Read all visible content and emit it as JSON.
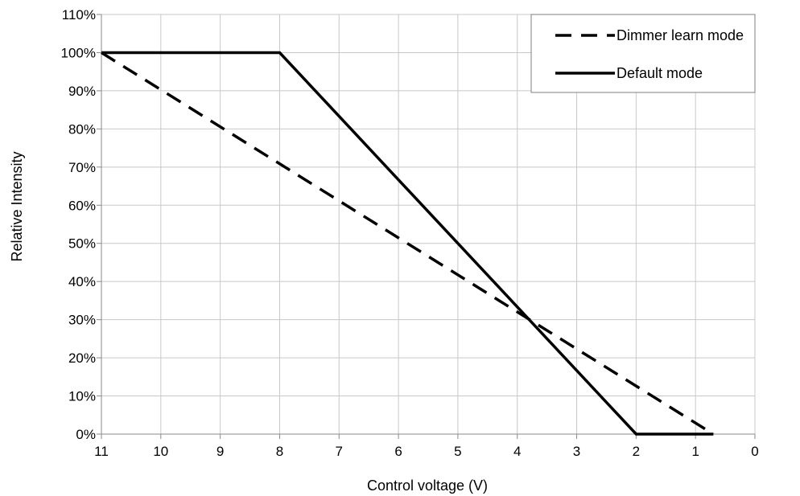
{
  "chart_data": {
    "type": "line",
    "title": "",
    "xlabel": "Control voltage (V)",
    "ylabel": "Relative Intensity",
    "xlim": [
      11,
      0
    ],
    "x_reversed": true,
    "ylim": [
      0,
      110
    ],
    "x_ticks": [
      11,
      10,
      9,
      8,
      7,
      6,
      5,
      4,
      3,
      2,
      1,
      0
    ],
    "y_ticks": [
      0,
      10,
      20,
      30,
      40,
      50,
      60,
      70,
      80,
      90,
      100,
      110
    ],
    "y_tick_format": "percent",
    "grid": true,
    "legend_position": "top-right",
    "series": [
      {
        "name": "Dimmer learn mode",
        "style": "dashed",
        "color": "#000000",
        "points": [
          [
            11,
            100
          ],
          [
            0.7,
            0
          ]
        ]
      },
      {
        "name": "Default mode",
        "style": "solid",
        "color": "#000000",
        "points": [
          [
            11,
            100
          ],
          [
            8,
            100
          ],
          [
            2,
            0
          ],
          [
            0.7,
            0
          ]
        ]
      }
    ]
  }
}
